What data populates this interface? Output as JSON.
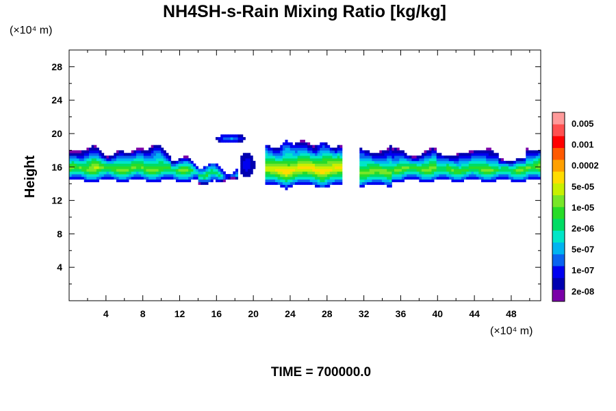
{
  "chart_data": {
    "type": "heatmap",
    "title": "NH4SH-s-Rain Mixing Ratio [kg/kg]",
    "ylabel": "Height",
    "xunit": "(×10⁴ m)",
    "yunit": "(×10⁴ m)",
    "xlim": [
      0,
      51.2
    ],
    "ylim": [
      0,
      30
    ],
    "xticks": [
      4,
      8,
      12,
      16,
      20,
      24,
      28,
      32,
      36,
      40,
      44,
      48
    ],
    "yticks": [
      4,
      8,
      12,
      16,
      20,
      24,
      28
    ],
    "colorbar": {
      "labels": [
        "0.005",
        "0.001",
        "0.0002",
        "5e-05",
        "1e-05",
        "2e-06",
        "5e-07",
        "1e-07",
        "2e-08"
      ],
      "colors": [
        "#7a00a8",
        "#0000b0",
        "#0000f0",
        "#0a64f0",
        "#00b4f0",
        "#00e6c8",
        "#00dc64",
        "#28dc28",
        "#78e628",
        "#c8f000",
        "#ffdc00",
        "#ffa000",
        "#ff5a00",
        "#ff0000",
        "#ff5050",
        "#ff9a9a"
      ]
    },
    "time_label": "TIME = 700000.0"
  }
}
